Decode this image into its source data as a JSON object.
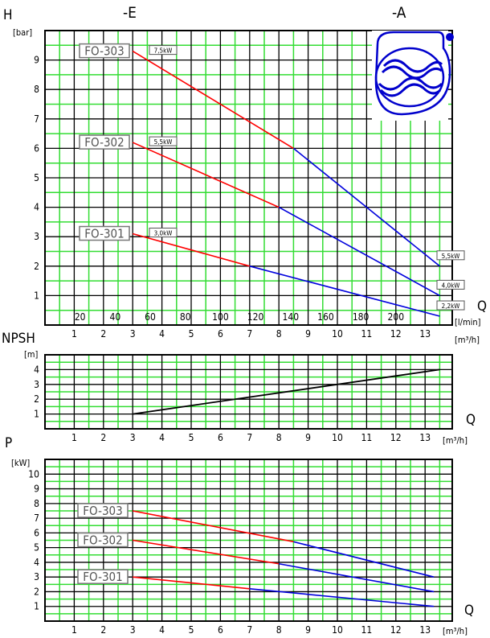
{
  "header": {
    "left_label": "-E",
    "right_label": "-A"
  },
  "chart_data": [
    {
      "type": "line",
      "id": "head",
      "ylabel": "H",
      "yunit": "[bar]",
      "xlabel": "Q",
      "xunit_top": "[l/min]",
      "xunit_bottom": "[m³/h]",
      "xlim": [
        0,
        14
      ],
      "ylim": [
        0,
        10
      ],
      "grid": true,
      "x_ticks": [
        "1",
        "2",
        "3",
        "4",
        "5",
        "6",
        "7",
        "8",
        "9",
        "10",
        "11",
        "12",
        "13"
      ],
      "y_ticks": [
        "1",
        "2",
        "3",
        "4",
        "5",
        "6",
        "7",
        "8",
        "9"
      ],
      "lmin_ticks": [
        {
          "value": 20,
          "label": "20"
        },
        {
          "value": 40,
          "label": "40"
        },
        {
          "value": 60,
          "label": "60"
        },
        {
          "value": 80,
          "label": "80"
        },
        {
          "value": 100,
          "label": "100"
        },
        {
          "value": 120,
          "label": "120"
        },
        {
          "value": 140,
          "label": "140"
        },
        {
          "value": 160,
          "label": "160"
        },
        {
          "value": 180,
          "label": "180"
        },
        {
          "value": 200,
          "label": "200"
        }
      ],
      "series": [
        {
          "name": "FO-303",
          "rating_e": "7,5kW",
          "rating_a": "5,5kW",
          "e": [
            [
              3,
              9.3
            ],
            [
              8.5,
              6.0
            ]
          ],
          "a": [
            [
              8.5,
              6.0
            ],
            [
              13.5,
              2.0
            ]
          ]
        },
        {
          "name": "FO-302",
          "rating_e": "5,5kW",
          "rating_a": "4,0kW",
          "e": [
            [
              3,
              6.2
            ],
            [
              8,
              4.0
            ]
          ],
          "a": [
            [
              8,
              4.0
            ],
            [
              13.5,
              1.0
            ]
          ]
        },
        {
          "name": "FO-301",
          "rating_e": "3,0kW",
          "rating_a": "2,2kW",
          "e": [
            [
              3,
              3.1
            ],
            [
              7,
              2.0
            ]
          ],
          "a": [
            [
              7,
              2.0
            ],
            [
              13.5,
              0.3
            ]
          ]
        }
      ]
    },
    {
      "type": "line",
      "id": "npsh",
      "ylabel": "NPSH",
      "yunit": "[m]",
      "xlabel": "Q",
      "xunit_bottom": "[m³/h]",
      "xlim": [
        0,
        14
      ],
      "ylim": [
        0,
        5
      ],
      "grid": true,
      "x_ticks": [
        "1",
        "2",
        "3",
        "4",
        "5",
        "6",
        "7",
        "8",
        "9",
        "10",
        "11",
        "12",
        "13"
      ],
      "y_ticks": [
        "1",
        "2",
        "3",
        "4"
      ],
      "series": [
        {
          "points": [
            [
              3,
              1.0
            ],
            [
              13.5,
              4.0
            ]
          ]
        }
      ]
    },
    {
      "type": "line",
      "id": "power",
      "ylabel": "P",
      "yunit": "[kW]",
      "xlabel": "Q",
      "xunit_bottom": "[m³/h]",
      "xlim": [
        0,
        14
      ],
      "ylim": [
        0,
        11
      ],
      "grid": true,
      "x_ticks": [
        "1",
        "2",
        "3",
        "4",
        "5",
        "6",
        "7",
        "8",
        "9",
        "10",
        "11",
        "12",
        "13"
      ],
      "y_ticks": [
        "1",
        "2",
        "3",
        "4",
        "5",
        "6",
        "7",
        "8",
        "9",
        "10"
      ],
      "series": [
        {
          "name": "FO-303",
          "e": [
            [
              3,
              7.5
            ],
            [
              8.5,
              5.4
            ]
          ],
          "a": [
            [
              8.5,
              5.4
            ],
            [
              13.3,
              3.0
            ]
          ]
        },
        {
          "name": "FO-302",
          "e": [
            [
              3,
              5.5
            ],
            [
              8,
              3.9
            ]
          ],
          "a": [
            [
              8,
              3.9
            ],
            [
              13.3,
              2.0
            ]
          ]
        },
        {
          "name": "FO-301",
          "e": [
            [
              3,
              3.0
            ],
            [
              7,
              2.2
            ]
          ],
          "a": [
            [
              7,
              2.2
            ],
            [
              13.3,
              1.0
            ]
          ]
        }
      ]
    }
  ],
  "colors": {
    "e": "#ff0000",
    "a": "#0000dd",
    "grid_green": "#33dd33",
    "npsh_line": "#000000"
  }
}
